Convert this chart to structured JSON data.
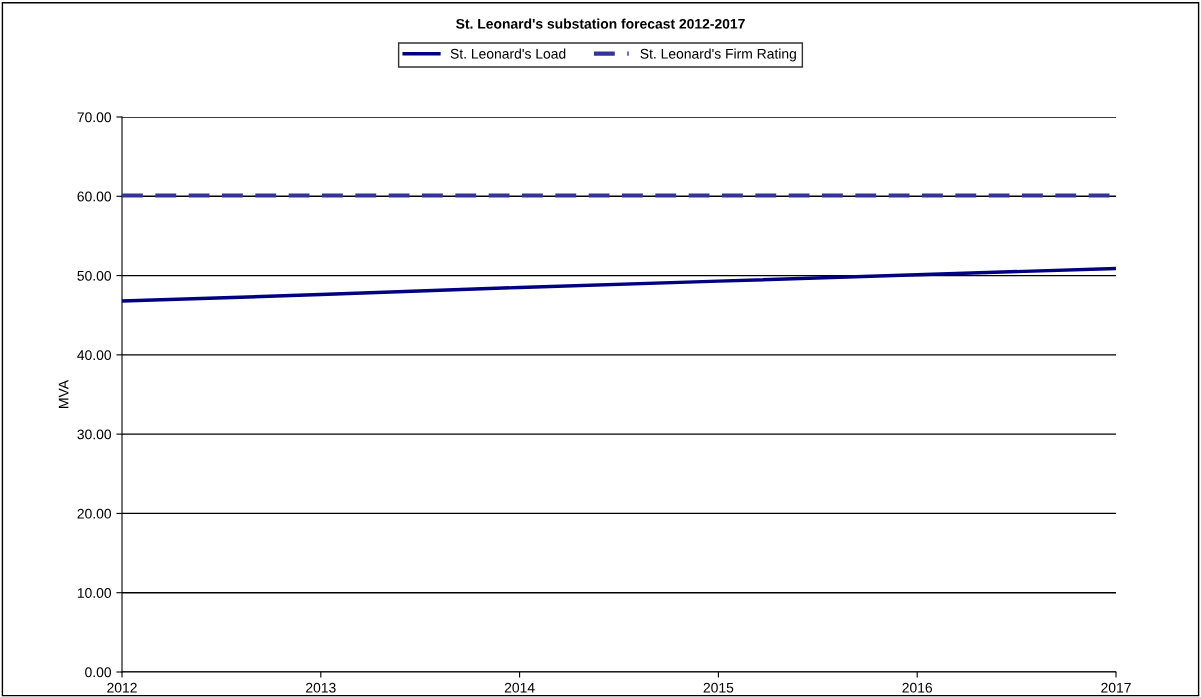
{
  "chart_data": {
    "type": "line",
    "title": "St. Leonard's substation forecast 2012-2017",
    "ylabel": "MVA",
    "x": [
      2012,
      2013,
      2014,
      2015,
      2016,
      2017
    ],
    "series": [
      {
        "name": "St. Leonard's Load",
        "color": "#000080",
        "values": [
          46.8,
          47.6,
          48.5,
          49.3,
          50.1,
          50.9
        ],
        "line_style": "solid"
      },
      {
        "name": "St. Leonard's Firm Rating",
        "color": "#333399",
        "values": [
          60.1,
          60.1,
          60.1,
          60.1,
          60.1,
          60.1
        ],
        "line_style": "dashed"
      }
    ],
    "xlim": [
      2012,
      2017
    ],
    "xticks": [
      2012,
      2013,
      2014,
      2015,
      2016,
      2017
    ],
    "ylim": [
      0,
      70
    ],
    "yticks": [
      {
        "value": 0,
        "label": "0.00"
      },
      {
        "value": 10,
        "label": "10.00"
      },
      {
        "value": 20,
        "label": "20.00"
      },
      {
        "value": 30,
        "label": "30.00"
      },
      {
        "value": 40,
        "label": "40.00"
      },
      {
        "value": 50,
        "label": "50.00"
      },
      {
        "value": 60,
        "label": "60.00"
      },
      {
        "value": 70,
        "label": "70.00"
      }
    ],
    "grid": "y",
    "legend": "top",
    "marker": "none"
  }
}
